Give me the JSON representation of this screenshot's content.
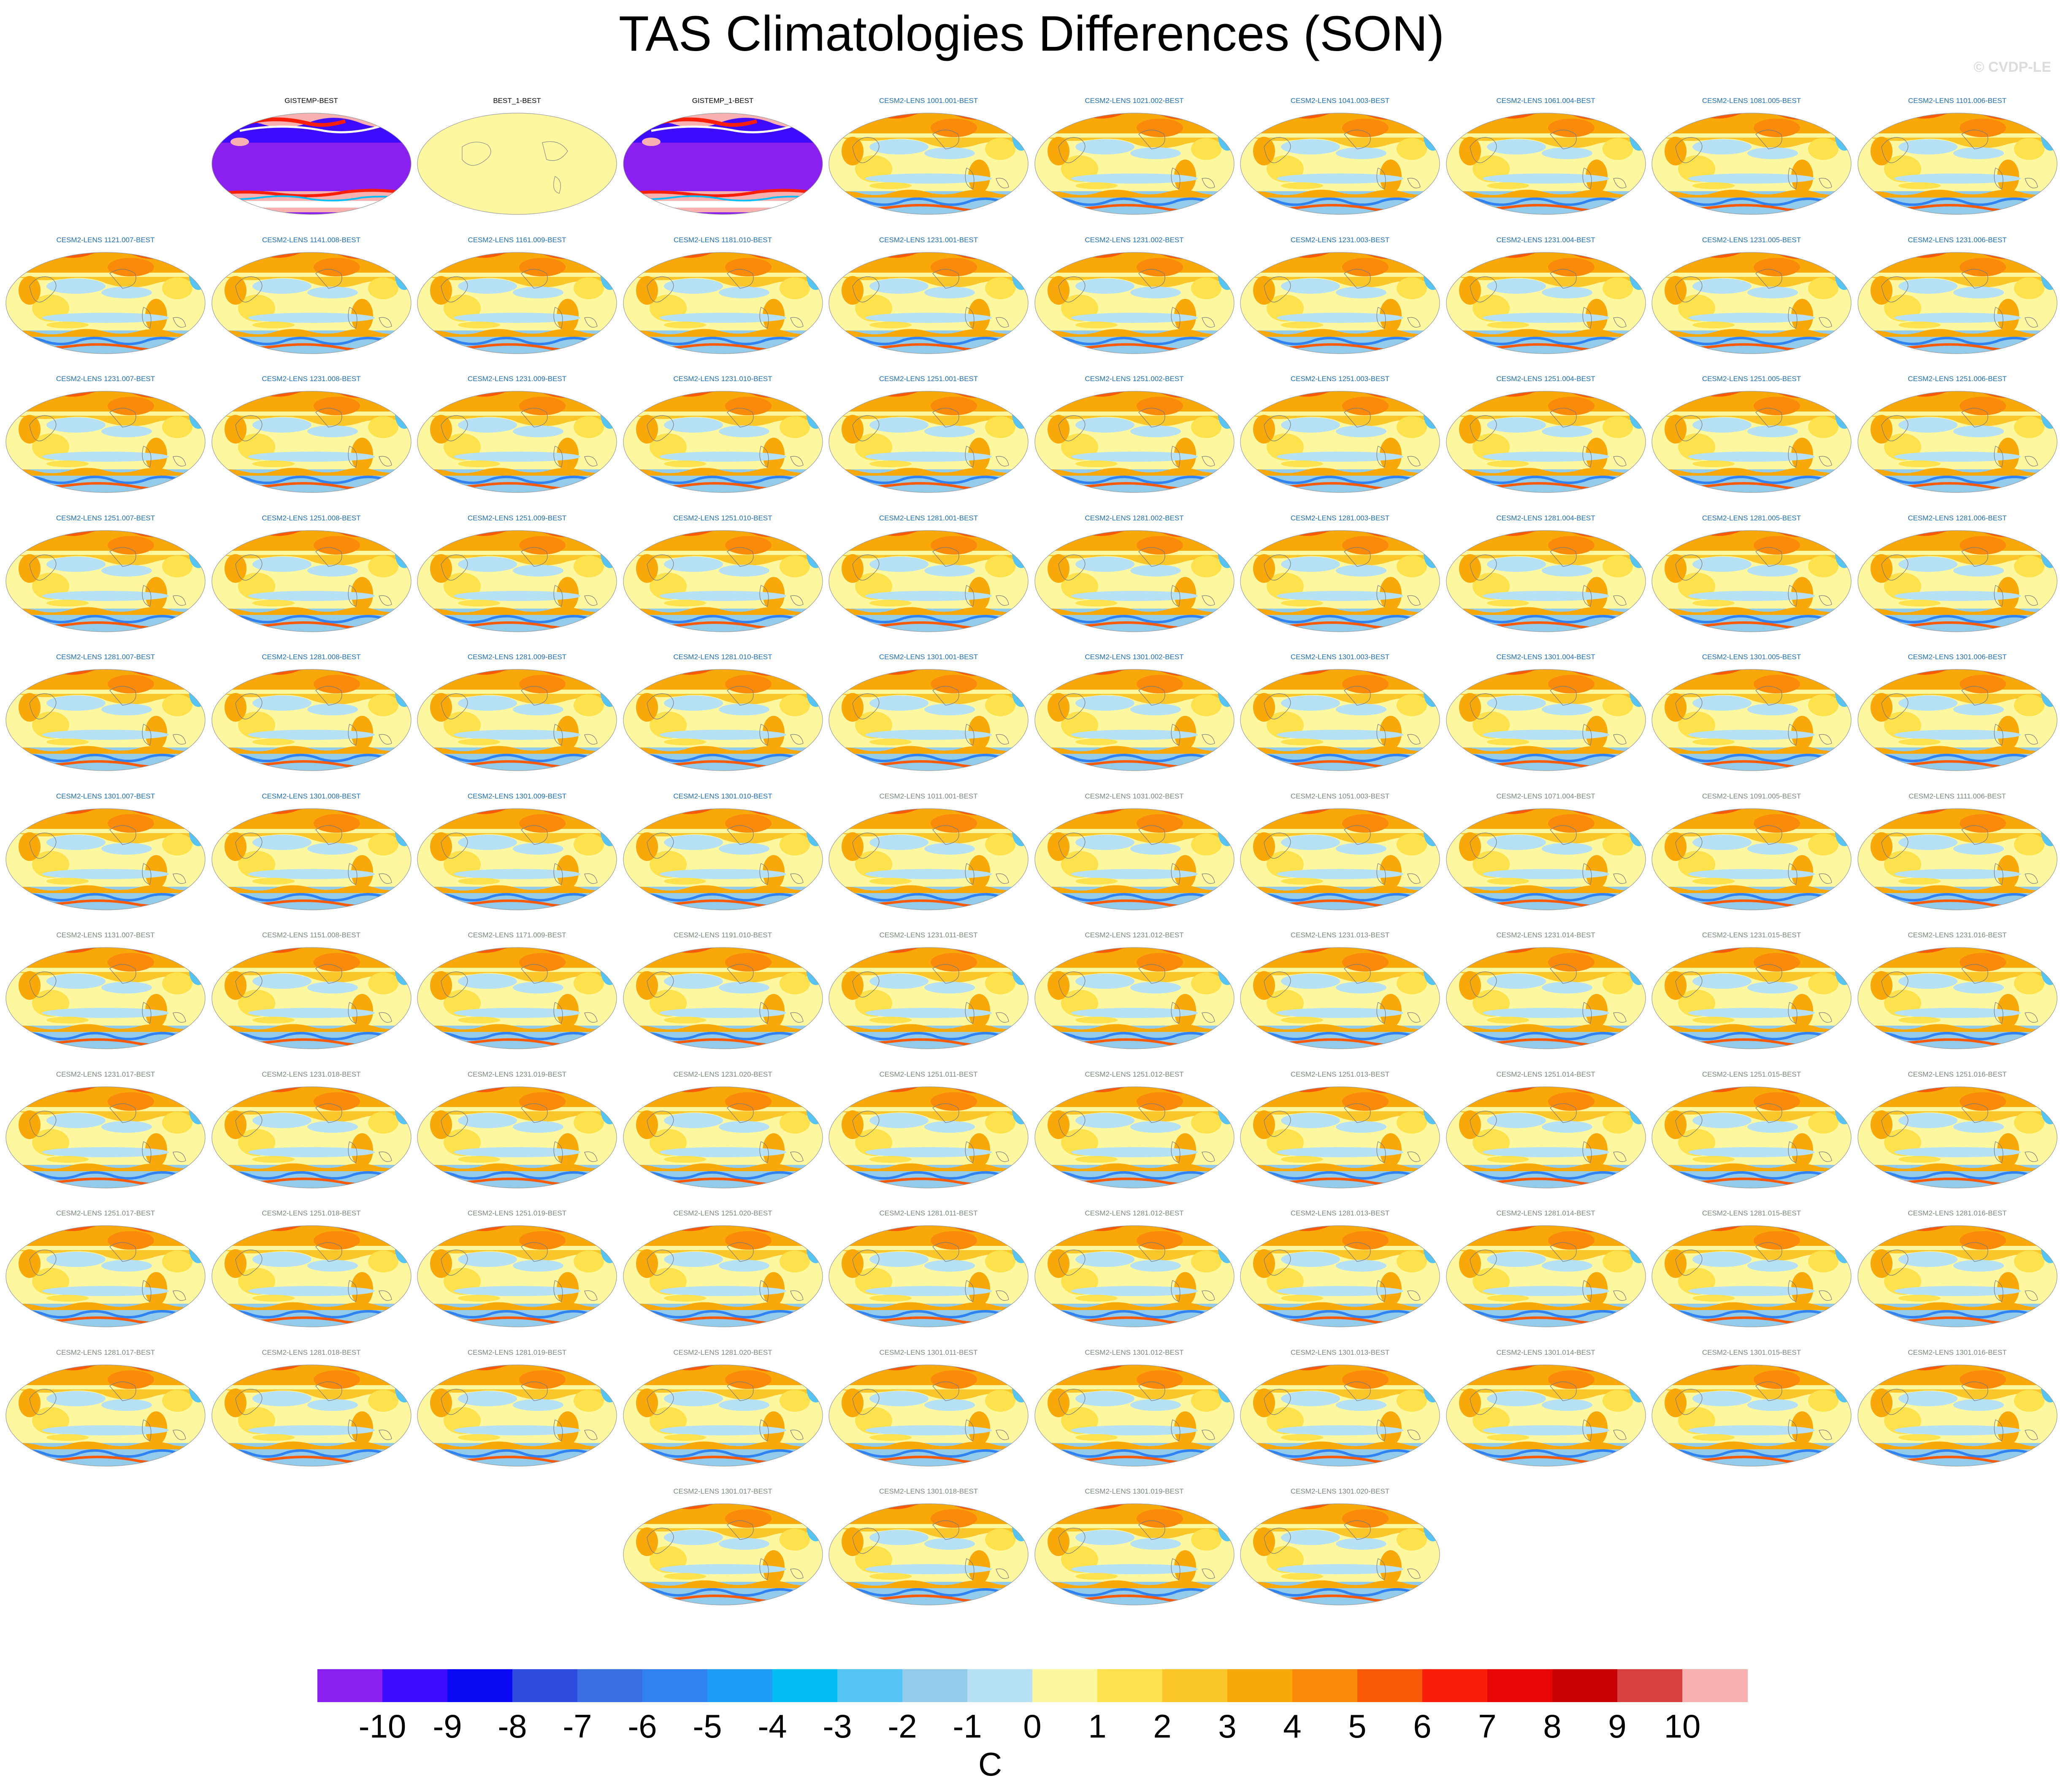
{
  "title": "TAS Climatologies Differences (SON)",
  "watermark": "© CVDP-LE",
  "panels": [
    {
      "title": "GISTEMP-BEST",
      "kind": "obs-cold",
      "color": "#000000"
    },
    {
      "title": "BEST_1-BEST",
      "kind": "obs-flat",
      "color": "#000000"
    },
    {
      "title": "GISTEMP_1-BEST",
      "kind": "obs-cold",
      "color": "#000000"
    },
    {
      "title": "CESM2-LENS 1001.001-BEST",
      "kind": "model",
      "color": "#1f6fb5"
    },
    {
      "title": "CESM2-LENS 1021.002-BEST",
      "kind": "model",
      "color": "#1f6fb5"
    },
    {
      "title": "CESM2-LENS 1041.003-BEST",
      "kind": "model",
      "color": "#1f6fb5"
    },
    {
      "title": "CESM2-LENS 1061.004-BEST",
      "kind": "model",
      "color": "#1f6fb5"
    },
    {
      "title": "CESM2-LENS 1081.005-BEST",
      "kind": "model",
      "color": "#1f6fb5"
    },
    {
      "title": "CESM2-LENS 1101.006-BEST",
      "kind": "model",
      "color": "#1f6fb5"
    },
    {
      "title": "CESM2-LENS 1121.007-BEST",
      "kind": "model",
      "color": "#1f6fb5"
    },
    {
      "title": "CESM2-LENS 1141.008-BEST",
      "kind": "model",
      "color": "#1f6fb5"
    },
    {
      "title": "CESM2-LENS 1161.009-BEST",
      "kind": "model",
      "color": "#1f6fb5"
    },
    {
      "title": "CESM2-LENS 1181.010-BEST",
      "kind": "model",
      "color": "#1f6fb5"
    },
    {
      "title": "CESM2-LENS 1231.001-BEST",
      "kind": "model",
      "color": "#1f6fb5"
    },
    {
      "title": "CESM2-LENS 1231.002-BEST",
      "kind": "model",
      "color": "#1f6fb5"
    },
    {
      "title": "CESM2-LENS 1231.003-BEST",
      "kind": "model",
      "color": "#1f6fb5"
    },
    {
      "title": "CESM2-LENS 1231.004-BEST",
      "kind": "model",
      "color": "#1f6fb5"
    },
    {
      "title": "CESM2-LENS 1231.005-BEST",
      "kind": "model",
      "color": "#1f6fb5"
    },
    {
      "title": "CESM2-LENS 1231.006-BEST",
      "kind": "model",
      "color": "#1f6fb5"
    },
    {
      "title": "CESM2-LENS 1231.007-BEST",
      "kind": "model",
      "color": "#1f6fb5"
    },
    {
      "title": "CESM2-LENS 1231.008-BEST",
      "kind": "model",
      "color": "#1f6fb5"
    },
    {
      "title": "CESM2-LENS 1231.009-BEST",
      "kind": "model",
      "color": "#1f6fb5"
    },
    {
      "title": "CESM2-LENS 1231.010-BEST",
      "kind": "model",
      "color": "#1f6fb5"
    },
    {
      "title": "CESM2-LENS 1251.001-BEST",
      "kind": "model",
      "color": "#1f6fb5"
    },
    {
      "title": "CESM2-LENS 1251.002-BEST",
      "kind": "model",
      "color": "#1f6fb5"
    },
    {
      "title": "CESM2-LENS 1251.003-BEST",
      "kind": "model",
      "color": "#1f6fb5"
    },
    {
      "title": "CESM2-LENS 1251.004-BEST",
      "kind": "model",
      "color": "#1f6fb5"
    },
    {
      "title": "CESM2-LENS 1251.005-BEST",
      "kind": "model",
      "color": "#1f6fb5"
    },
    {
      "title": "CESM2-LENS 1251.006-BEST",
      "kind": "model",
      "color": "#1f6fb5"
    },
    {
      "title": "CESM2-LENS 1251.007-BEST",
      "kind": "model",
      "color": "#1f6fb5"
    },
    {
      "title": "CESM2-LENS 1251.008-BEST",
      "kind": "model",
      "color": "#1f6fb5"
    },
    {
      "title": "CESM2-LENS 1251.009-BEST",
      "kind": "model",
      "color": "#1f6fb5"
    },
    {
      "title": "CESM2-LENS 1251.010-BEST",
      "kind": "model",
      "color": "#1f6fb5"
    },
    {
      "title": "CESM2-LENS 1281.001-BEST",
      "kind": "model",
      "color": "#1f6fb5"
    },
    {
      "title": "CESM2-LENS 1281.002-BEST",
      "kind": "model",
      "color": "#1f6fb5"
    },
    {
      "title": "CESM2-LENS 1281.003-BEST",
      "kind": "model",
      "color": "#1f6fb5"
    },
    {
      "title": "CESM2-LENS 1281.004-BEST",
      "kind": "model",
      "color": "#1f6fb5"
    },
    {
      "title": "CESM2-LENS 1281.005-BEST",
      "kind": "model",
      "color": "#1f6fb5"
    },
    {
      "title": "CESM2-LENS 1281.006-BEST",
      "kind": "model",
      "color": "#1f6fb5"
    },
    {
      "title": "CESM2-LENS 1281.007-BEST",
      "kind": "model",
      "color": "#1f6fb5"
    },
    {
      "title": "CESM2-LENS 1281.008-BEST",
      "kind": "model",
      "color": "#1f6fb5"
    },
    {
      "title": "CESM2-LENS 1281.009-BEST",
      "kind": "model",
      "color": "#1f6fb5"
    },
    {
      "title": "CESM2-LENS 1281.010-BEST",
      "kind": "model",
      "color": "#1f6fb5"
    },
    {
      "title": "CESM2-LENS 1301.001-BEST",
      "kind": "model",
      "color": "#1f6fb5"
    },
    {
      "title": "CESM2-LENS 1301.002-BEST",
      "kind": "model",
      "color": "#1f6fb5"
    },
    {
      "title": "CESM2-LENS 1301.003-BEST",
      "kind": "model",
      "color": "#1f6fb5"
    },
    {
      "title": "CESM2-LENS 1301.004-BEST",
      "kind": "model",
      "color": "#1f6fb5"
    },
    {
      "title": "CESM2-LENS 1301.005-BEST",
      "kind": "model",
      "color": "#1f6fb5"
    },
    {
      "title": "CESM2-LENS 1301.006-BEST",
      "kind": "model",
      "color": "#1f6fb5"
    },
    {
      "title": "CESM2-LENS 1301.007-BEST",
      "kind": "model",
      "color": "#1f6fb5"
    },
    {
      "title": "CESM2-LENS 1301.008-BEST",
      "kind": "model",
      "color": "#1f6fb5"
    },
    {
      "title": "CESM2-LENS 1301.009-BEST",
      "kind": "model",
      "color": "#1f6fb5"
    },
    {
      "title": "CESM2-LENS 1301.010-BEST",
      "kind": "model",
      "color": "#1f6fb5"
    },
    {
      "title": "CESM2-LENS 1011.001-BEST",
      "kind": "model",
      "color": "#7a8a7a"
    },
    {
      "title": "CESM2-LENS 1031.002-BEST",
      "kind": "model",
      "color": "#7a8a7a"
    },
    {
      "title": "CESM2-LENS 1051.003-BEST",
      "kind": "model",
      "color": "#7a8a7a"
    },
    {
      "title": "CESM2-LENS 1071.004-BEST",
      "kind": "model",
      "color": "#7a8a7a"
    },
    {
      "title": "CESM2-LENS 1091.005-BEST",
      "kind": "model",
      "color": "#7a8a7a"
    },
    {
      "title": "CESM2-LENS 1111.006-BEST",
      "kind": "model",
      "color": "#7a8a7a"
    },
    {
      "title": "CESM2-LENS 1131.007-BEST",
      "kind": "model",
      "color": "#7a8a7a"
    },
    {
      "title": "CESM2-LENS 1151.008-BEST",
      "kind": "model",
      "color": "#7a8a7a"
    },
    {
      "title": "CESM2-LENS 1171.009-BEST",
      "kind": "model",
      "color": "#7a8a7a"
    },
    {
      "title": "CESM2-LENS 1191.010-BEST",
      "kind": "model",
      "color": "#7a8a7a"
    },
    {
      "title": "CESM2-LENS 1231.011-BEST",
      "kind": "model",
      "color": "#7a8a7a"
    },
    {
      "title": "CESM2-LENS 1231.012-BEST",
      "kind": "model",
      "color": "#7a8a7a"
    },
    {
      "title": "CESM2-LENS 1231.013-BEST",
      "kind": "model",
      "color": "#7a8a7a"
    },
    {
      "title": "CESM2-LENS 1231.014-BEST",
      "kind": "model",
      "color": "#7a8a7a"
    },
    {
      "title": "CESM2-LENS 1231.015-BEST",
      "kind": "model",
      "color": "#7a8a7a"
    },
    {
      "title": "CESM2-LENS 1231.016-BEST",
      "kind": "model",
      "color": "#7a8a7a"
    },
    {
      "title": "CESM2-LENS 1231.017-BEST",
      "kind": "model",
      "color": "#7a8a7a"
    },
    {
      "title": "CESM2-LENS 1231.018-BEST",
      "kind": "model",
      "color": "#7a8a7a"
    },
    {
      "title": "CESM2-LENS 1231.019-BEST",
      "kind": "model",
      "color": "#7a8a7a"
    },
    {
      "title": "CESM2-LENS 1231.020-BEST",
      "kind": "model",
      "color": "#7a8a7a"
    },
    {
      "title": "CESM2-LENS 1251.011-BEST",
      "kind": "model",
      "color": "#7a8a7a"
    },
    {
      "title": "CESM2-LENS 1251.012-BEST",
      "kind": "model",
      "color": "#7a8a7a"
    },
    {
      "title": "CESM2-LENS 1251.013-BEST",
      "kind": "model",
      "color": "#7a8a7a"
    },
    {
      "title": "CESM2-LENS 1251.014-BEST",
      "kind": "model",
      "color": "#7a8a7a"
    },
    {
      "title": "CESM2-LENS 1251.015-BEST",
      "kind": "model",
      "color": "#7a8a7a"
    },
    {
      "title": "CESM2-LENS 1251.016-BEST",
      "kind": "model",
      "color": "#7a8a7a"
    },
    {
      "title": "CESM2-LENS 1251.017-BEST",
      "kind": "model",
      "color": "#7a8a7a"
    },
    {
      "title": "CESM2-LENS 1251.018-BEST",
      "kind": "model",
      "color": "#7a8a7a"
    },
    {
      "title": "CESM2-LENS 1251.019-BEST",
      "kind": "model",
      "color": "#7a8a7a"
    },
    {
      "title": "CESM2-LENS 1251.020-BEST",
      "kind": "model",
      "color": "#7a8a7a"
    },
    {
      "title": "CESM2-LENS 1281.011-BEST",
      "kind": "model",
      "color": "#7a8a7a"
    },
    {
      "title": "CESM2-LENS 1281.012-BEST",
      "kind": "model",
      "color": "#7a8a7a"
    },
    {
      "title": "CESM2-LENS 1281.013-BEST",
      "kind": "model",
      "color": "#7a8a7a"
    },
    {
      "title": "CESM2-LENS 1281.014-BEST",
      "kind": "model",
      "color": "#7a8a7a"
    },
    {
      "title": "CESM2-LENS 1281.015-BEST",
      "kind": "model",
      "color": "#7a8a7a"
    },
    {
      "title": "CESM2-LENS 1281.016-BEST",
      "kind": "model",
      "color": "#7a8a7a"
    },
    {
      "title": "CESM2-LENS 1281.017-BEST",
      "kind": "model",
      "color": "#7a8a7a"
    },
    {
      "title": "CESM2-LENS 1281.018-BEST",
      "kind": "model",
      "color": "#7a8a7a"
    },
    {
      "title": "CESM2-LENS 1281.019-BEST",
      "kind": "model",
      "color": "#7a8a7a"
    },
    {
      "title": "CESM2-LENS 1281.020-BEST",
      "kind": "model",
      "color": "#7a8a7a"
    },
    {
      "title": "CESM2-LENS 1301.011-BEST",
      "kind": "model",
      "color": "#7a8a7a"
    },
    {
      "title": "CESM2-LENS 1301.012-BEST",
      "kind": "model",
      "color": "#7a8a7a"
    },
    {
      "title": "CESM2-LENS 1301.013-BEST",
      "kind": "model",
      "color": "#7a8a7a"
    },
    {
      "title": "CESM2-LENS 1301.014-BEST",
      "kind": "model",
      "color": "#7a8a7a"
    },
    {
      "title": "CESM2-LENS 1301.015-BEST",
      "kind": "model",
      "color": "#7a8a7a"
    },
    {
      "title": "CESM2-LENS 1301.016-BEST",
      "kind": "model",
      "color": "#7a8a7a"
    },
    {
      "title": "CESM2-LENS 1301.017-BEST",
      "kind": "model",
      "color": "#7a8a7a"
    },
    {
      "title": "CESM2-LENS 1301.018-BEST",
      "kind": "model",
      "color": "#7a8a7a"
    },
    {
      "title": "CESM2-LENS 1301.019-BEST",
      "kind": "model",
      "color": "#7a8a7a"
    },
    {
      "title": "CESM2-LENS 1301.020-BEST",
      "kind": "model",
      "color": "#7a8a7a"
    }
  ],
  "colorbar": {
    "colors": [
      "#8a20f0",
      "#3e0cff",
      "#0a0af5",
      "#2e4de0",
      "#3a6fe2",
      "#2f82f0",
      "#1f9cf5",
      "#05bdf5",
      "#55c4f2",
      "#93cbeb",
      "#b6e0f4",
      "#fdf7a0",
      "#fde24e",
      "#fbc62a",
      "#f9a80a",
      "#f98a0a",
      "#f95a08",
      "#f91e08",
      "#e80505",
      "#c80000",
      "#d64040",
      "#f8b0b0"
    ],
    "labels": [
      "-10",
      "-9",
      "-8",
      "-7",
      "-6",
      "-5",
      "-4",
      "-3",
      "-2",
      "-1",
      "0",
      "1",
      "2",
      "3",
      "4",
      "5",
      "6",
      "7",
      "8",
      "9",
      "10"
    ],
    "units": "C"
  }
}
